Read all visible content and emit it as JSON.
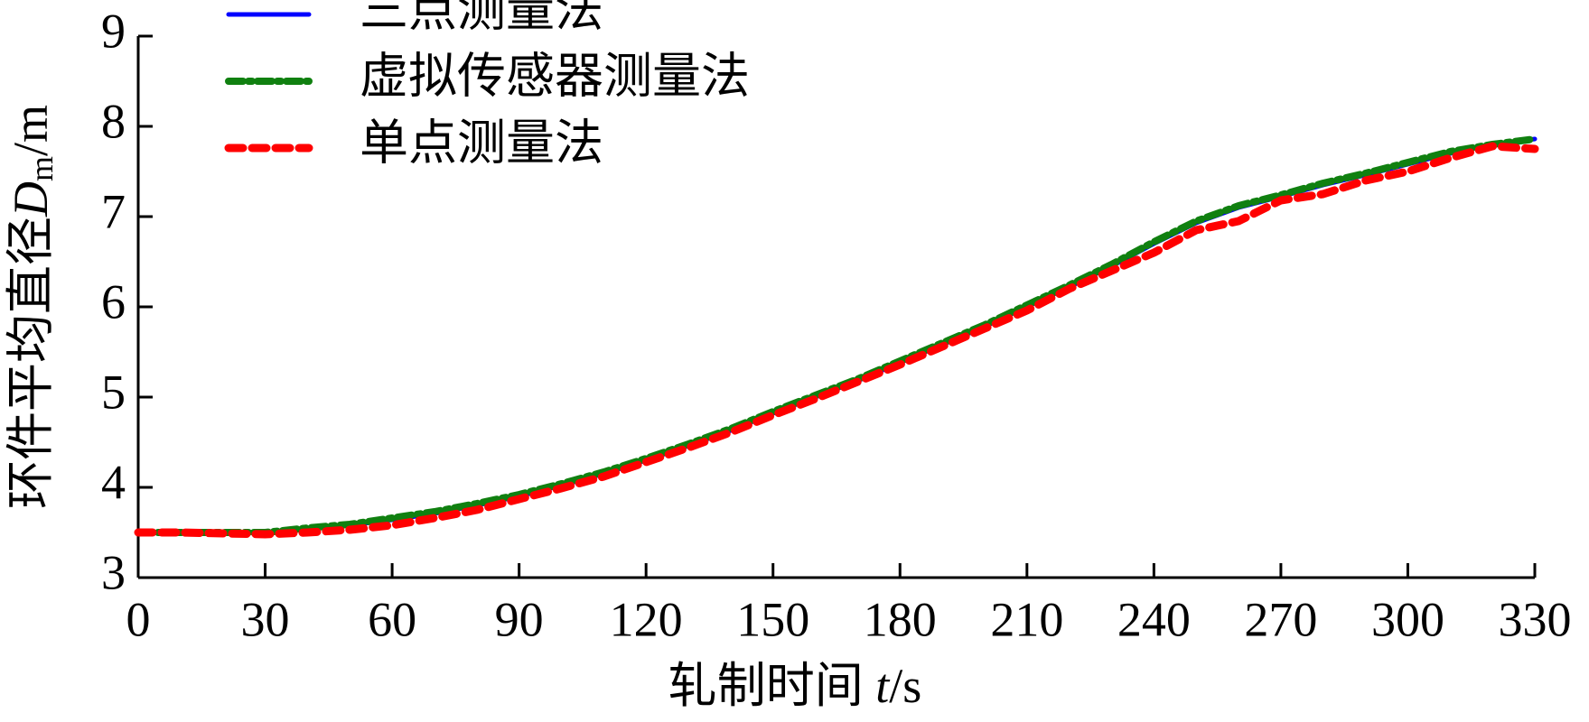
{
  "chart_data": {
    "type": "line",
    "x_label": {
      "text": "轧制时间 ",
      "variable": "t",
      "unit": "/s"
    },
    "y_label": {
      "text": "环件平均直径",
      "variable": "D",
      "subscript": "m",
      "unit": "/m"
    },
    "x": [
      0,
      10,
      20,
      30,
      40,
      50,
      60,
      70,
      80,
      90,
      100,
      110,
      120,
      130,
      140,
      150,
      160,
      170,
      180,
      190,
      200,
      210,
      220,
      230,
      240,
      250,
      260,
      270,
      280,
      290,
      300,
      310,
      320,
      330
    ],
    "series": [
      {
        "name": "三点测量法",
        "color": "#0000ff",
        "style": "solid",
        "values": [
          3.5,
          3.5,
          3.5,
          3.5,
          3.54,
          3.58,
          3.64,
          3.71,
          3.8,
          3.9,
          4.02,
          4.15,
          4.3,
          4.46,
          4.63,
          4.82,
          5.0,
          5.18,
          5.38,
          5.58,
          5.78,
          6.0,
          6.22,
          6.45,
          6.7,
          6.93,
          7.1,
          7.22,
          7.35,
          7.46,
          7.58,
          7.7,
          7.8,
          7.86
        ]
      },
      {
        "name": "虚拟传感器测量法",
        "color": "#108010",
        "style": "dashdot",
        "values": [
          3.5,
          3.5,
          3.5,
          3.5,
          3.55,
          3.59,
          3.66,
          3.73,
          3.82,
          3.92,
          4.04,
          4.17,
          4.32,
          4.48,
          4.65,
          4.84,
          5.02,
          5.2,
          5.4,
          5.6,
          5.8,
          6.02,
          6.24,
          6.47,
          6.72,
          6.95,
          7.12,
          7.24,
          7.37,
          7.48,
          7.6,
          7.72,
          7.8,
          7.86
        ]
      },
      {
        "name": "单点测量法",
        "color": "#ff0000",
        "style": "dashed",
        "values": [
          3.5,
          3.5,
          3.49,
          3.48,
          3.5,
          3.53,
          3.58,
          3.66,
          3.75,
          3.87,
          3.99,
          4.12,
          4.28,
          4.44,
          4.61,
          4.8,
          4.98,
          5.17,
          5.36,
          5.56,
          5.76,
          5.96,
          6.2,
          6.4,
          6.6,
          6.85,
          6.95,
          7.18,
          7.25,
          7.4,
          7.5,
          7.65,
          7.78,
          7.75
        ]
      }
    ],
    "xlim": [
      0,
      330
    ],
    "xticks": [
      0,
      30,
      60,
      90,
      120,
      150,
      180,
      210,
      240,
      270,
      300,
      330
    ],
    "ylim": [
      3,
      9
    ],
    "yticks": [
      3,
      4,
      5,
      6,
      7,
      8,
      9
    ],
    "grid": false,
    "legend": "upper left"
  }
}
